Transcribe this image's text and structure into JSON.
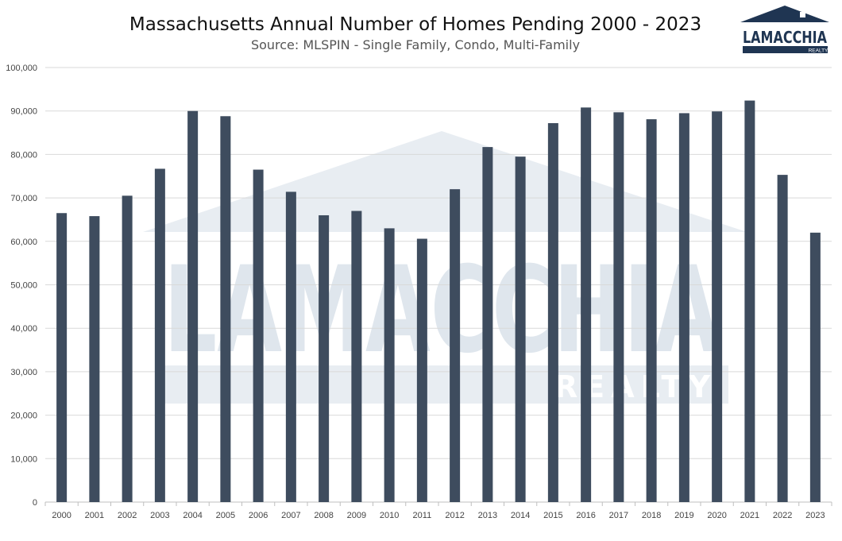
{
  "header": {
    "title": "Massachusetts Annual Number of Homes Pending 2000 - 2023",
    "subtitle": "Source: MLSPIN - Single Family, Condo, Multi-Family"
  },
  "logo": {
    "name": "LAMACCHIA",
    "tag": "REALTY"
  },
  "watermark": {
    "name": "LAMACCHIA",
    "tag": "REALTY"
  },
  "colors": {
    "bar": "#3e4c5e",
    "watermark": "#dfe6ed",
    "logo": "#1f3552"
  },
  "chart_data": {
    "type": "bar",
    "title": "Massachusetts Annual Number of Homes Pending 2000 - 2023",
    "subtitle": "Source: MLSPIN - Single Family, Condo, Multi-Family",
    "xlabel": "",
    "ylabel": "",
    "ylim": [
      0,
      100000
    ],
    "yticks": [
      0,
      10000,
      20000,
      30000,
      40000,
      50000,
      60000,
      70000,
      80000,
      90000,
      100000
    ],
    "ytick_labels": [
      "0",
      "10,000",
      "20,000",
      "30,000",
      "40,000",
      "50,000",
      "60,000",
      "70,000",
      "80,000",
      "90,000",
      "100,000"
    ],
    "grid": true,
    "legend": "none",
    "categories": [
      "2000",
      "2001",
      "2002",
      "2003",
      "2004",
      "2005",
      "2006",
      "2007",
      "2008",
      "2009",
      "2010",
      "2011",
      "2012",
      "2013",
      "2014",
      "2015",
      "2016",
      "2017",
      "2018",
      "2019",
      "2020",
      "2021",
      "2022",
      "2023"
    ],
    "values": [
      66500,
      65800,
      70500,
      76700,
      90000,
      88800,
      76500,
      71400,
      66000,
      67000,
      63000,
      60600,
      72000,
      81700,
      79500,
      87200,
      90800,
      89700,
      88100,
      89500,
      89900,
      92400,
      75300,
      62000
    ]
  }
}
